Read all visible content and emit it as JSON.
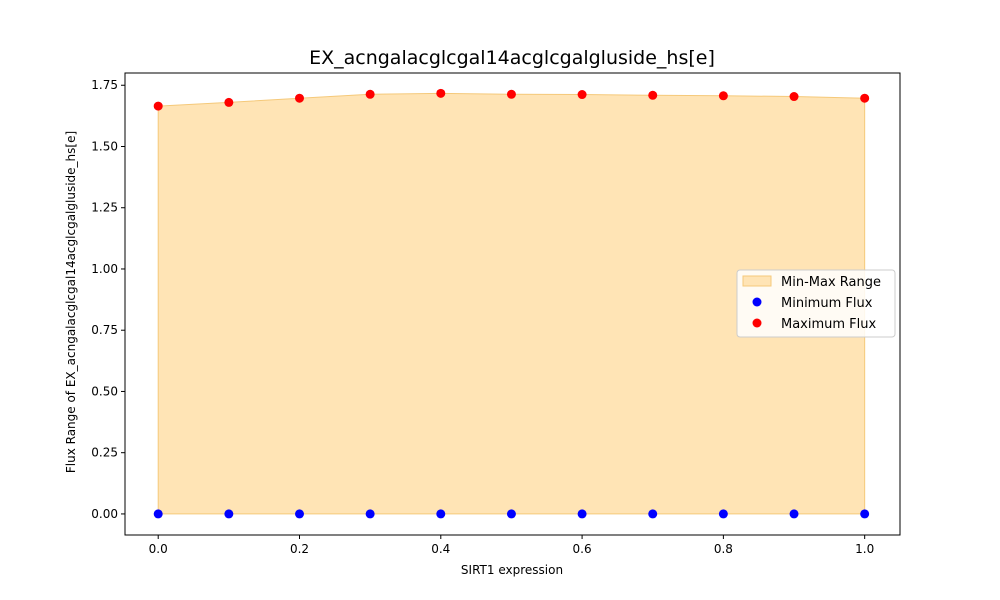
{
  "chart_data": {
    "type": "scatter",
    "title": "EX_acngalacglcgal14acglcgalgluside_hs[e]",
    "xlabel": "SIRT1 expression",
    "ylabel": "Flux Range of EX_acngalacglcgal14acglcgalgluside_hs[e]",
    "xlim": [
      -0.047,
      1.05
    ],
    "ylim": [
      -0.086,
      1.8
    ],
    "xticks": [
      0.0,
      0.2,
      0.4,
      0.6,
      0.8,
      1.0
    ],
    "xtick_labels": [
      "0.0",
      "0.2",
      "0.4",
      "0.6",
      "0.8",
      "1.0"
    ],
    "yticks": [
      0.0,
      0.25,
      0.5,
      0.75,
      1.0,
      1.25,
      1.5,
      1.75
    ],
    "ytick_labels": [
      "0.00",
      "0.25",
      "0.50",
      "0.75",
      "1.00",
      "1.25",
      "1.50",
      "1.75"
    ],
    "grid": false,
    "legend_position": "center-right",
    "x": [
      0.0,
      0.1,
      0.2,
      0.3,
      0.4,
      0.5,
      0.6,
      0.7,
      0.8,
      0.9,
      1.0
    ],
    "series": [
      {
        "name": "Min-Max Range",
        "kind": "fill_between",
        "color": "#ffe4b5",
        "edge_color": "#f5c97a"
      },
      {
        "name": "Minimum Flux",
        "kind": "scatter",
        "color": "#0000ff",
        "values": [
          0,
          0,
          0,
          0,
          0,
          0,
          0,
          0,
          0,
          0,
          0
        ]
      },
      {
        "name": "Maximum Flux",
        "kind": "scatter",
        "color": "#ff0000",
        "values": [
          1.665,
          1.68,
          1.697,
          1.713,
          1.717,
          1.713,
          1.712,
          1.709,
          1.707,
          1.704,
          1.697
        ]
      }
    ]
  }
}
